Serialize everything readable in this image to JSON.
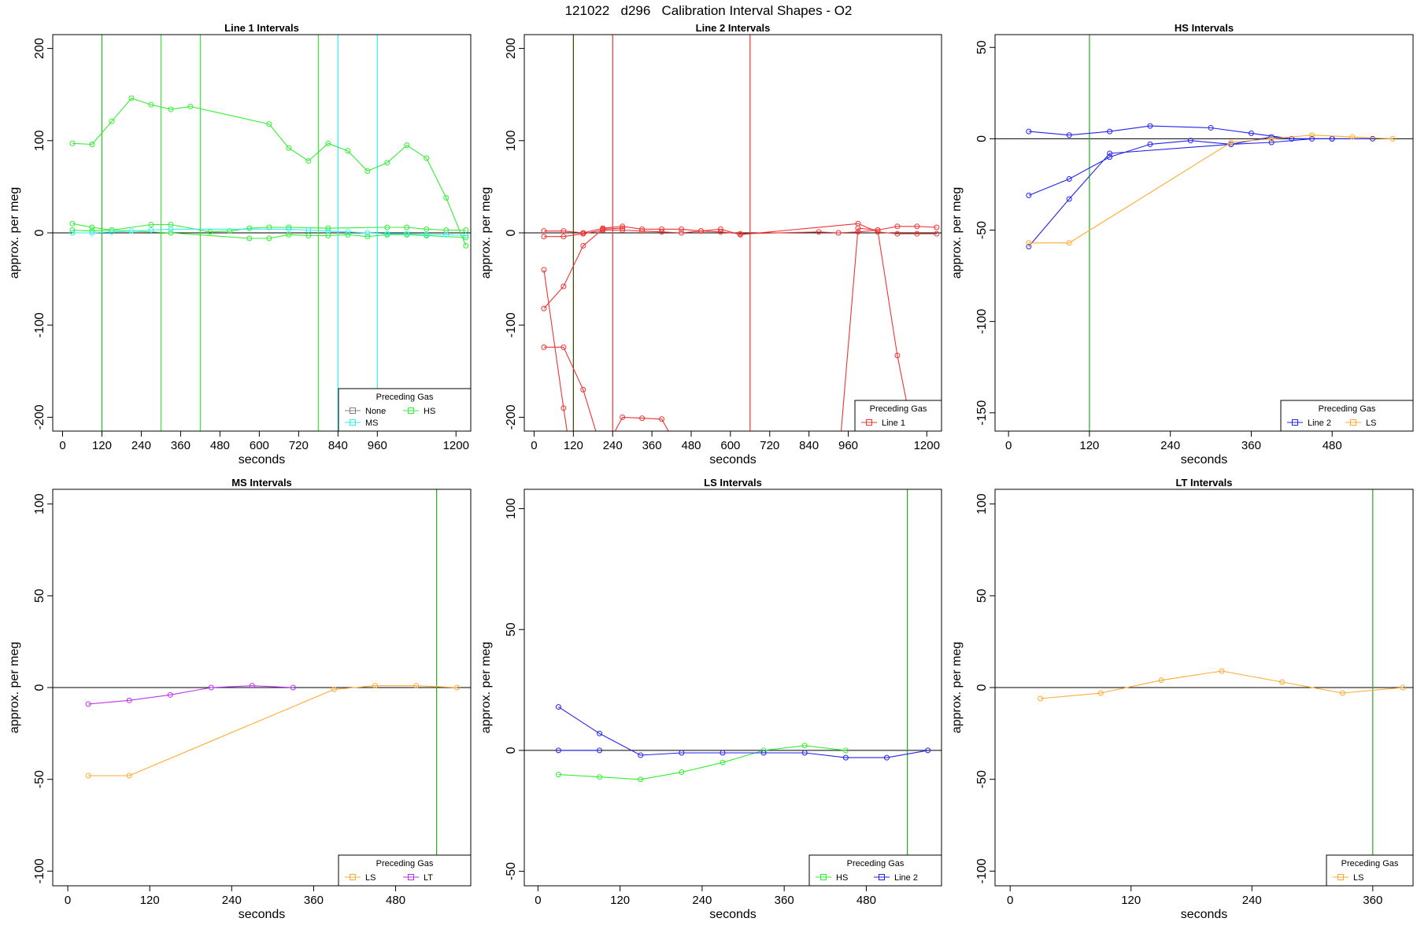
{
  "page": {
    "title": "121022   d296   Calibration Interval Shapes - O2"
  },
  "chart_data": [
    {
      "type": "line",
      "title": "Line 1 Intervals",
      "xlabel": "seconds",
      "ylabel": "approx. per meg",
      "xlim": [
        -30,
        1245
      ],
      "ylim": [
        -215,
        215
      ],
      "xticks": [
        0,
        120,
        240,
        360,
        480,
        600,
        720,
        840,
        960,
        1200
      ],
      "yticks": [
        -200,
        -100,
        0,
        100,
        200
      ],
      "hline": 0,
      "vlines": [
        {
          "x": 120,
          "color": "#22bb22"
        },
        {
          "x": 300,
          "color": "#33ee33"
        },
        {
          "x": 420,
          "color": "#33ee33"
        },
        {
          "x": 780,
          "color": "#33ee33"
        },
        {
          "x": 840,
          "color": "#33eeee"
        },
        {
          "x": 960,
          "color": "#33eeee"
        }
      ],
      "series": [
        {
          "name": "HS",
          "color": "#33ee33",
          "x": [
            30,
            90,
            150,
            210,
            270,
            330,
            390,
            630,
            690,
            750,
            810,
            870,
            930,
            990,
            1050,
            1110,
            1170,
            1230
          ],
          "y": [
            97,
            96,
            121,
            146,
            139,
            134,
            137,
            118,
            92,
            78,
            97,
            89,
            67,
            76,
            95,
            81,
            38,
            -14
          ]
        },
        {
          "name": "HS",
          "color": "#33ee33",
          "x": [
            30,
            90,
            150,
            270,
            330,
            450,
            510,
            570,
            630,
            690,
            810,
            990,
            1050,
            1110,
            1170,
            1230
          ],
          "y": [
            10,
            6,
            3,
            9,
            9,
            1,
            2,
            5,
            6,
            6,
            5,
            6,
            6,
            4,
            3,
            3
          ]
        },
        {
          "name": "HS",
          "color": "#33ee33",
          "x": [
            30,
            90,
            150,
            330,
            570,
            630,
            690,
            750,
            810,
            870,
            930,
            990,
            1050,
            1110,
            1230
          ],
          "y": [
            3,
            2,
            3,
            0,
            -6,
            -6,
            -2,
            -3,
            -3,
            -2,
            -4,
            -2,
            -2,
            -3,
            -5
          ]
        },
        {
          "name": "MS",
          "color": "#33eeee",
          "x": [
            30,
            90,
            150,
            210,
            270,
            330,
            690,
            750,
            810,
            870,
            930,
            990,
            1050,
            1110,
            1170,
            1230
          ],
          "y": [
            0,
            0,
            1,
            2,
            3,
            4,
            4,
            3,
            2,
            1,
            0,
            -1,
            -1,
            -2,
            -2,
            -3
          ]
        }
      ],
      "legend": {
        "title": "Preceding Gas",
        "position": "bottom-right",
        "items": [
          {
            "label": "None",
            "color": "#808080"
          },
          {
            "label": "HS",
            "color": "#33ee33"
          },
          {
            "label": "MS",
            "color": "#33eeee"
          }
        ]
      }
    },
    {
      "type": "line",
      "title": "Line 2 Intervals",
      "xlabel": "seconds",
      "ylabel": "approx. per meg",
      "xlim": [
        -30,
        1245
      ],
      "ylim": [
        -215,
        215
      ],
      "xticks": [
        0,
        120,
        240,
        360,
        480,
        600,
        720,
        840,
        960,
        1200
      ],
      "yticks": [
        -200,
        -100,
        0,
        100,
        200
      ],
      "hline": 0,
      "vlines": [
        {
          "x": 120,
          "color": "#334400"
        },
        {
          "x": 240,
          "color": "#ee3333"
        },
        {
          "x": 660,
          "color": "#ee3333"
        }
      ],
      "series": [
        {
          "name": "Line 1",
          "color": "#ee3333",
          "x": [
            30,
            90,
            150,
            210,
            270
          ],
          "y": [
            -82,
            -58,
            -14,
            4,
            5
          ]
        },
        {
          "name": "Line 1",
          "color": "#ee3333",
          "x": [
            30,
            90,
            150,
            210,
            270,
            330,
            390,
            450,
            510,
            570,
            630,
            870,
            930,
            990,
            1050,
            1110,
            1170,
            1230
          ],
          "y": [
            -4,
            -4,
            -1,
            3,
            3,
            2,
            1,
            0,
            2,
            1,
            -1,
            1,
            0,
            1,
            3,
            7,
            7,
            6
          ]
        },
        {
          "name": "Line 1",
          "color": "#ee3333",
          "x": [
            30,
            90,
            150,
            210,
            270,
            330,
            390,
            450,
            510,
            570,
            630,
            990,
            1050,
            1110,
            1170,
            1230
          ],
          "y": [
            2,
            2,
            0,
            5,
            7,
            4,
            4,
            4,
            2,
            4,
            -2,
            10,
            1,
            -1,
            -1,
            -1
          ]
        },
        {
          "name": "Line 1",
          "color": "#ee3333",
          "x": [
            30,
            90,
            150
          ],
          "y": [
            -40,
            -190,
            -330
          ]
        },
        {
          "name": "Line 1",
          "color": "#ee3333",
          "x": [
            30,
            90,
            150,
            210,
            270,
            330,
            390,
            450
          ],
          "y": [
            -124,
            -124,
            -170,
            -240,
            -200,
            -201,
            -202,
            -240
          ]
        },
        {
          "name": "Line 1",
          "color": "#ee3333",
          "x": [
            930,
            990,
            1050,
            1110,
            1170,
            1230
          ],
          "y": [
            -250,
            5,
            3,
            -133,
            -240,
            -240
          ]
        }
      ],
      "legend": {
        "title": "Preceding Gas",
        "position": "bottom-right",
        "items": [
          {
            "label": "Line 1",
            "color": "#ee3333"
          }
        ]
      }
    },
    {
      "type": "line",
      "title": "HS Intervals",
      "xlabel": "seconds",
      "ylabel": "approx. per meg",
      "xlim": [
        -20,
        600
      ],
      "ylim": [
        -160,
        57
      ],
      "xticks": [
        0,
        120,
        240,
        360,
        480
      ],
      "yticks": [
        -150,
        -100,
        -50,
        0,
        50
      ],
      "hline": 0,
      "vlines": [
        {
          "x": 120,
          "color": "#22aa22"
        }
      ],
      "series": [
        {
          "name": "Line 2",
          "color": "#2222ee",
          "x": [
            30,
            90,
            150,
            210,
            300,
            360,
            420,
            480,
            540
          ],
          "y": [
            4,
            2,
            4,
            7,
            6,
            3,
            0,
            0,
            0
          ]
        },
        {
          "name": "Line 2",
          "color": "#2222ee",
          "x": [
            30,
            90,
            150,
            210,
            270,
            330,
            390,
            450
          ],
          "y": [
            -31,
            -22,
            -10,
            -3,
            -1,
            -3,
            -2,
            0
          ]
        },
        {
          "name": "Line 2",
          "color": "#2222ee",
          "x": [
            30,
            90,
            150,
            330,
            390,
            420,
            480
          ],
          "y": [
            -59,
            -33,
            -8,
            -3,
            1,
            0,
            0
          ]
        },
        {
          "name": "LS",
          "color": "#ffaa33",
          "x": [
            30,
            90,
            330,
            390,
            450,
            510,
            570
          ],
          "y": [
            -57,
            -57,
            -2,
            0,
            2,
            1,
            0
          ]
        }
      ],
      "legend": {
        "title": "Preceding Gas",
        "position": "bottom-right",
        "items": [
          {
            "label": "Line 2",
            "color": "#2222ee"
          },
          {
            "label": "LS",
            "color": "#ffaa33"
          }
        ]
      }
    },
    {
      "type": "line",
      "title": "MS Intervals",
      "xlabel": "seconds",
      "ylabel": "approx. per meg",
      "xlim": [
        -22,
        590
      ],
      "ylim": [
        -108,
        108
      ],
      "xticks": [
        0,
        120,
        240,
        360,
        480
      ],
      "yticks": [
        -100,
        -50,
        0,
        50,
        100
      ],
      "hline": 0,
      "vlines": [
        {
          "x": 540,
          "color": "#22aa22"
        }
      ],
      "series": [
        {
          "name": "LS",
          "color": "#ffaa33",
          "x": [
            30,
            90,
            390,
            450,
            510,
            570
          ],
          "y": [
            -48,
            -48,
            -1,
            1,
            1,
            0
          ]
        },
        {
          "name": "LT",
          "color": "#bb33ee",
          "x": [
            30,
            90,
            150,
            210,
            270,
            330
          ],
          "y": [
            -9,
            -7,
            -4,
            0,
            1,
            0
          ]
        }
      ],
      "legend": {
        "title": "Preceding Gas",
        "position": "bottom-right",
        "items": [
          {
            "label": "LS",
            "color": "#ffaa33"
          },
          {
            "label": "LT",
            "color": "#bb33ee"
          }
        ]
      }
    },
    {
      "type": "line",
      "title": "LS Intervals",
      "xlabel": "seconds",
      "ylabel": "approx. per meg",
      "xlim": [
        -20,
        590
      ],
      "ylim": [
        -56,
        108
      ],
      "xticks": [
        0,
        120,
        240,
        360,
        480
      ],
      "yticks": [
        -50,
        0,
        50,
        100
      ],
      "hline": 0,
      "vlines": [
        {
          "x": 540,
          "color": "#22aa22"
        }
      ],
      "series": [
        {
          "name": "HS",
          "color": "#33ee33",
          "x": [
            30,
            90,
            150,
            210,
            270,
            330,
            390,
            450
          ],
          "y": [
            -10,
            -11,
            -12,
            -9,
            -5,
            0,
            2,
            0
          ]
        },
        {
          "name": "Line 2",
          "color": "#2222ee",
          "x": [
            30,
            90,
            150,
            210,
            270,
            330,
            390,
            450,
            510,
            570
          ],
          "y": [
            18,
            7,
            -2,
            -1,
            -1,
            -1,
            -1,
            -3,
            -3,
            0
          ]
        },
        {
          "name": "Line 2",
          "color": "#2222ee",
          "x": [
            30,
            90
          ],
          "y": [
            0,
            0
          ]
        }
      ],
      "legend": {
        "title": "Preceding Gas",
        "position": "bottom-right",
        "items": [
          {
            "label": "HS",
            "color": "#33ee33"
          },
          {
            "label": "Line 2",
            "color": "#2222ee"
          }
        ]
      }
    },
    {
      "type": "line",
      "title": "LT Intervals",
      "xlabel": "seconds",
      "ylabel": "approx. per meg",
      "xlim": [
        -15,
        400
      ],
      "ylim": [
        -108,
        108
      ],
      "xticks": [
        0,
        120,
        240,
        360
      ],
      "yticks": [
        -100,
        -50,
        0,
        50,
        100
      ],
      "hline": 0,
      "vlines": [
        {
          "x": 360,
          "color": "#22aa22"
        }
      ],
      "series": [
        {
          "name": "LS",
          "color": "#ffaa33",
          "x": [
            30,
            90,
            150,
            210,
            270,
            330,
            390
          ],
          "y": [
            -6,
            -3,
            4,
            9,
            3,
            -3,
            0
          ]
        }
      ],
      "legend": {
        "title": "Preceding Gas",
        "position": "bottom-right",
        "items": [
          {
            "label": "LS",
            "color": "#ffaa33"
          }
        ]
      }
    }
  ]
}
